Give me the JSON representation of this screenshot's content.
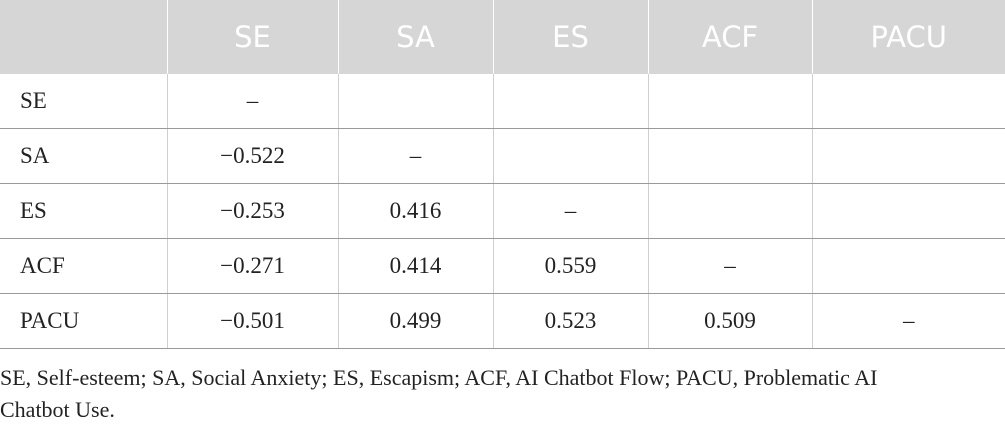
{
  "table": {
    "header": [
      null,
      "SE",
      "SA",
      "ES",
      "ACF",
      "PACU"
    ],
    "rows": [
      [
        "SE",
        "–",
        null,
        null,
        null,
        null
      ],
      [
        "SA",
        "−0.522",
        "–",
        null,
        null,
        null
      ],
      [
        "ES",
        "−0.253",
        "0.416",
        "–",
        null,
        null
      ],
      [
        "ACF",
        "−0.271",
        "0.414",
        "0.559",
        "–",
        null
      ],
      [
        "PACU",
        "−0.501",
        "0.499",
        "0.523",
        "0.509",
        "–"
      ]
    ]
  },
  "footnote": "SE, Self-esteem; SA, Social Anxiety; ES, Escapism; ACF, AI Chatbot Flow; PACU, Problematic AI Chatbot Use."
}
